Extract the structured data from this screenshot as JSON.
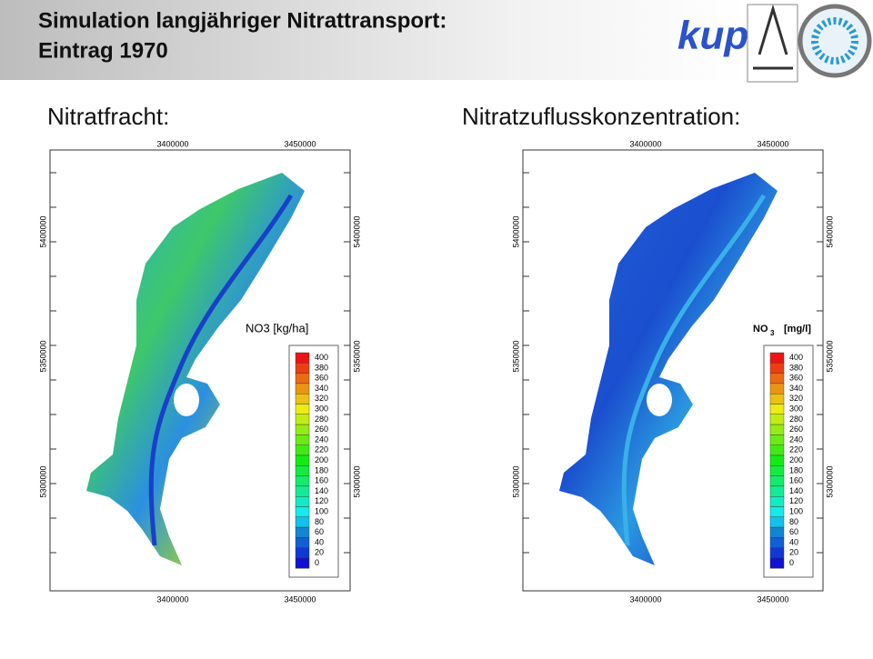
{
  "header": {
    "title": [
      "Simulation langjähriger Nitrattransport:",
      "Eintrag 1970"
    ],
    "logo": "kup"
  },
  "panels": [
    {
      "heading": "Nitratfracht:",
      "x_ticks": [
        "3400000",
        "3450000"
      ],
      "y_ticks": [
        "5400000",
        "5350000",
        "5300000"
      ],
      "legend": {
        "title": "NO3 [kg/ha]",
        "levels": [
          400,
          380,
          360,
          340,
          320,
          300,
          280,
          260,
          240,
          220,
          200,
          180,
          160,
          140,
          120,
          100,
          80,
          60,
          40,
          20,
          0
        ]
      }
    },
    {
      "heading": "Nitratzuflusskonzentration:",
      "x_ticks": [
        "3400000",
        "3450000"
      ],
      "y_ticks": [
        "5400000",
        "5350000",
        "5300000"
      ],
      "legend": {
        "title_main": "NO",
        "title_sub": "3",
        "title_unit": "[mg/l]",
        "levels": [
          400,
          380,
          360,
          340,
          320,
          300,
          280,
          260,
          240,
          220,
          200,
          180,
          160,
          140,
          120,
          100,
          80,
          60,
          40,
          20,
          0
        ]
      }
    }
  ]
}
